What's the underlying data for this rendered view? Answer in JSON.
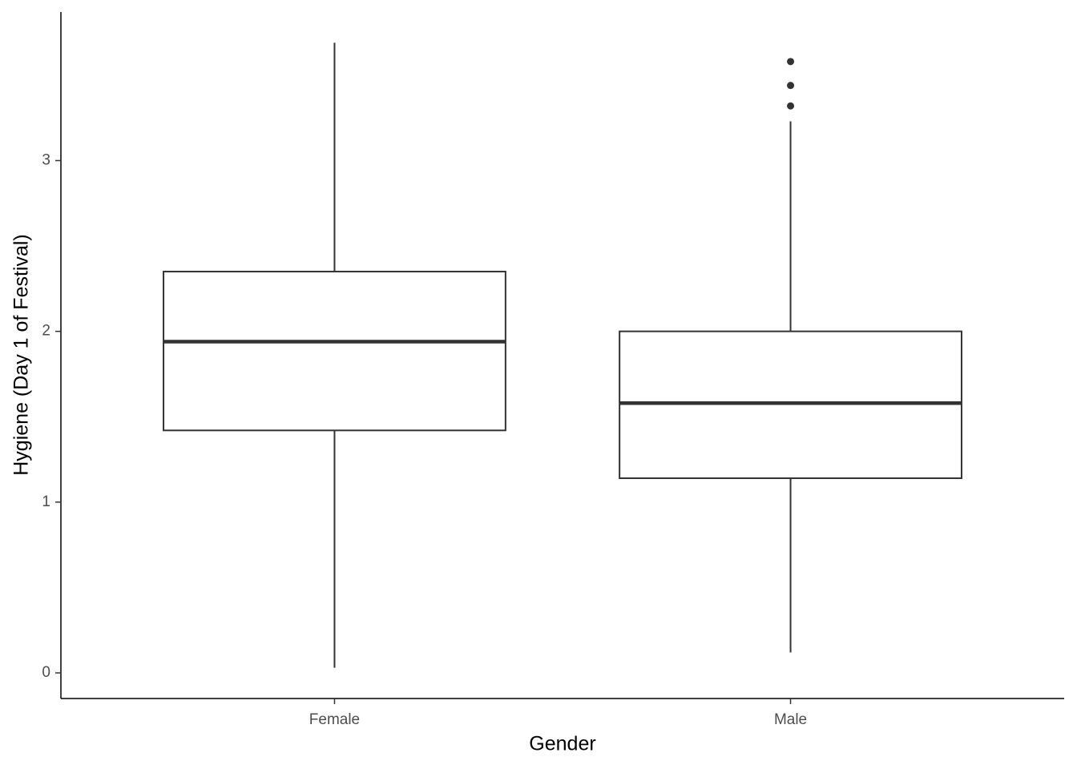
{
  "chart_data": {
    "type": "box",
    "x_label": "Gender",
    "y_label": "Hygiene (Day 1 of Festival)",
    "categories": [
      "Female",
      "Male"
    ],
    "whisker_low": [
      0.03,
      0.12
    ],
    "q1": [
      1.42,
      1.14
    ],
    "median": [
      1.94,
      1.58
    ],
    "q3": [
      2.35,
      2.0
    ],
    "whisker_high": [
      3.69,
      3.23
    ],
    "outliers": [
      [],
      [
        3.58,
        3.44,
        3.32
      ]
    ],
    "color": "#333333",
    "ylim": [
      -0.15,
      3.87
    ],
    "yticks": [
      0,
      1,
      2,
      3
    ],
    "grid": false
  }
}
